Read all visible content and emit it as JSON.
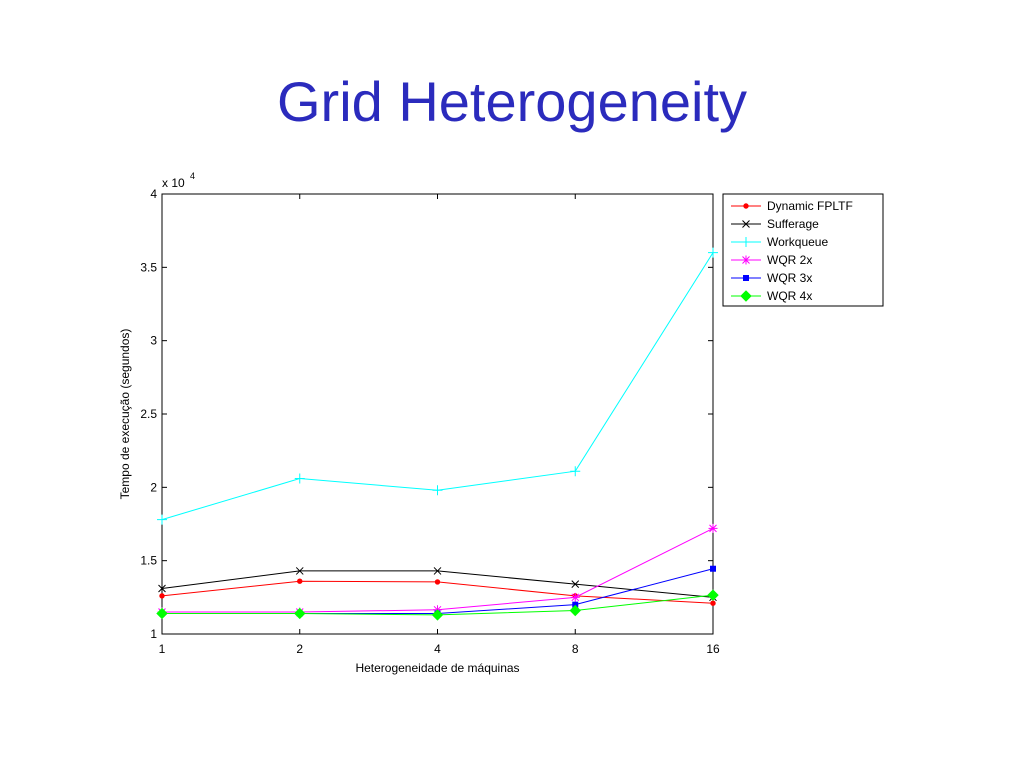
{
  "slide": {
    "title": "Grid Heterogeneity"
  },
  "chart_data": {
    "type": "line",
    "xlabel": "Heterogeneidade de máquinas",
    "ylabel": "Tempo de execução (segundos)",
    "multiplier": {
      "base": "x 10",
      "exponent": "4"
    },
    "categories": [
      "1",
      "2",
      "4",
      "8",
      "16"
    ],
    "yticks": [
      "1",
      "1.5",
      "2",
      "2.5",
      "3",
      "3.5",
      "4"
    ],
    "ylim": [
      1,
      4
    ],
    "grid": false,
    "legend_position": "outside-right-top",
    "series": [
      {
        "name": "Dynamic FPLTF",
        "color": "#ff0000",
        "marker": "dot",
        "values": [
          1.26,
          1.36,
          1.355,
          1.26,
          1.21
        ]
      },
      {
        "name": "Sufferage",
        "color": "#000000",
        "marker": "x",
        "values": [
          1.31,
          1.43,
          1.43,
          1.34,
          1.25
        ]
      },
      {
        "name": "Workqueue",
        "color": "#00ffff",
        "marker": "plus",
        "values": [
          1.78,
          2.06,
          1.98,
          2.11,
          3.6
        ]
      },
      {
        "name": "WQR 2x",
        "color": "#ff00ff",
        "marker": "star",
        "values": [
          1.15,
          1.15,
          1.165,
          1.25,
          1.72
        ]
      },
      {
        "name": "WQR 3x",
        "color": "#0000ff",
        "marker": "square",
        "values": [
          1.14,
          1.14,
          1.14,
          1.2,
          1.445
        ]
      },
      {
        "name": "WQR 4x",
        "color": "#00ff00",
        "marker": "diamond",
        "values": [
          1.14,
          1.14,
          1.13,
          1.16,
          1.265
        ]
      }
    ]
  }
}
